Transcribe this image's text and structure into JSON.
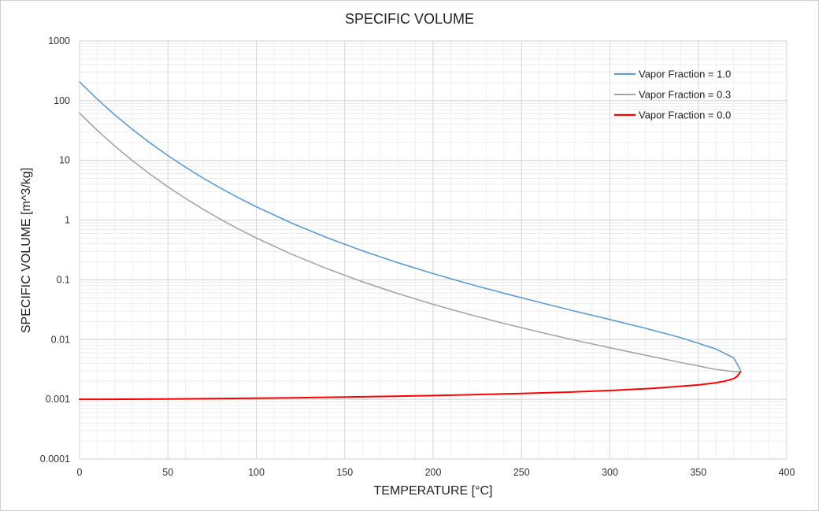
{
  "chart_data": {
    "type": "line",
    "title": "SPECIFIC VOLUME",
    "xlabel": "TEMPERATURE [°C]",
    "ylabel": "SPECIFIC VOLUME [m^3/kg]",
    "xlim": [
      0,
      400
    ],
    "ylim": [
      0.0001,
      1000
    ],
    "y_scale": "log",
    "grid": true,
    "legend_position": "top-right",
    "x_ticks": [
      "0",
      "50",
      "100",
      "150",
      "200",
      "250",
      "300",
      "350",
      "400"
    ],
    "y_ticks": [
      "0.0001",
      "0.001",
      "0.01",
      "0.1",
      "1",
      "10",
      "100",
      "1000"
    ],
    "series": [
      {
        "name": "Vapor Fraction = 1.0",
        "color": "#5b9bd5",
        "x": [
          0.01,
          10,
          20,
          30,
          40,
          50,
          60,
          70,
          80,
          90,
          100,
          120,
          140,
          160,
          180,
          200,
          220,
          240,
          260,
          280,
          300,
          320,
          340,
          360,
          370,
          373.9
        ],
        "y": [
          206,
          106.3,
          57.76,
          32.88,
          19.52,
          12.03,
          7.667,
          5.04,
          3.405,
          2.359,
          1.672,
          0.8913,
          0.5085,
          0.3071,
          0.1939,
          0.1272,
          0.08604,
          0.05971,
          0.04217,
          0.03,
          0.02166,
          0.01549,
          0.0108,
          0.006945,
          0.004947,
          0.0031
        ]
      },
      {
        "name": "Vapor Fraction = 0.3",
        "color": "#a5a5a5",
        "x": [
          0.01,
          10,
          20,
          30,
          40,
          50,
          60,
          70,
          80,
          90,
          100,
          120,
          140,
          160,
          180,
          200,
          220,
          240,
          260,
          280,
          300,
          320,
          340,
          360,
          370,
          373.9
        ],
        "y": [
          61.8,
          31.89,
          17.33,
          9.865,
          5.857,
          3.609,
          2.301,
          1.513,
          1.022,
          0.7081,
          0.5021,
          0.2682,
          0.1535,
          0.09301,
          0.05899,
          0.03892,
          0.02654,
          0.01864,
          0.01341,
          0.009795,
          0.007293,
          0.005487,
          0.004137,
          0.003159,
          0.002908,
          0.0029
        ]
      },
      {
        "name": "Vapor Fraction = 0.0",
        "color": "#ff0000",
        "x": [
          0.01,
          25,
          50,
          75,
          100,
          125,
          150,
          175,
          200,
          225,
          250,
          275,
          300,
          325,
          350,
          360,
          365,
          370,
          372,
          373.9
        ],
        "y": [
          0.001,
          0.001003,
          0.001012,
          0.001026,
          0.001043,
          0.001065,
          0.001091,
          0.001121,
          0.001157,
          0.001199,
          0.001252,
          0.001317,
          0.001404,
          0.001528,
          0.00174,
          0.001895,
          0.002016,
          0.002213,
          0.00243,
          0.0029
        ]
      }
    ]
  }
}
